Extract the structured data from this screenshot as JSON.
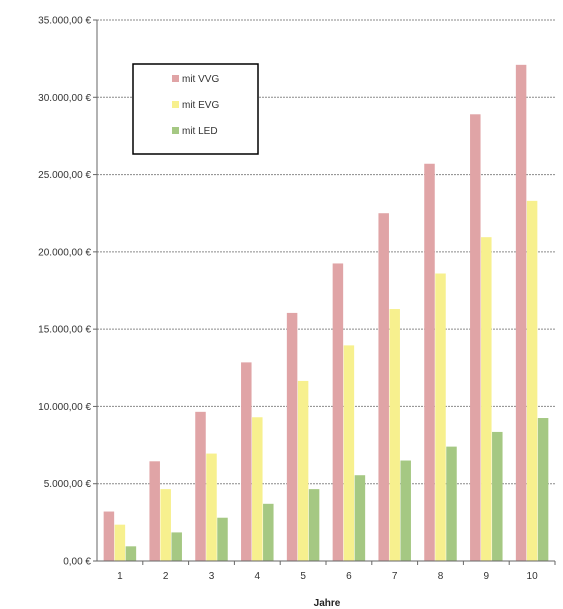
{
  "chart_data": {
    "type": "bar",
    "title": "",
    "xlabel": "Jahre",
    "ylabel": "",
    "categories": [
      "1",
      "2",
      "3",
      "4",
      "5",
      "6",
      "7",
      "8",
      "9",
      "10"
    ],
    "series": [
      {
        "name": "mit VVG",
        "color": "#e0a4a6",
        "values": [
          3200,
          6450,
          9650,
          12850,
          16050,
          19250,
          22500,
          25700,
          28900,
          32100
        ]
      },
      {
        "name": "mit EVG",
        "color": "#f7f08e",
        "values": [
          2350,
          4650,
          6950,
          9300,
          11650,
          13950,
          16300,
          18600,
          20950,
          23300
        ]
      },
      {
        "name": "mit LED",
        "color": "#a5c883",
        "values": [
          950,
          1850,
          2800,
          3700,
          4650,
          5550,
          6500,
          7400,
          8350,
          9250
        ]
      }
    ],
    "ylim": [
      0,
      35000
    ],
    "yticks": [
      0,
      5000,
      10000,
      15000,
      20000,
      25000,
      30000,
      35000
    ],
    "ytick_labels": [
      "0,00 €",
      "5.000,00 €",
      "10.000,00 €",
      "15.000,00 €",
      "20.000,00 €",
      "25.000,00 €",
      "30.000,00 €",
      "35.000,00 €"
    ],
    "grid": true,
    "legend_position": "top-left"
  }
}
